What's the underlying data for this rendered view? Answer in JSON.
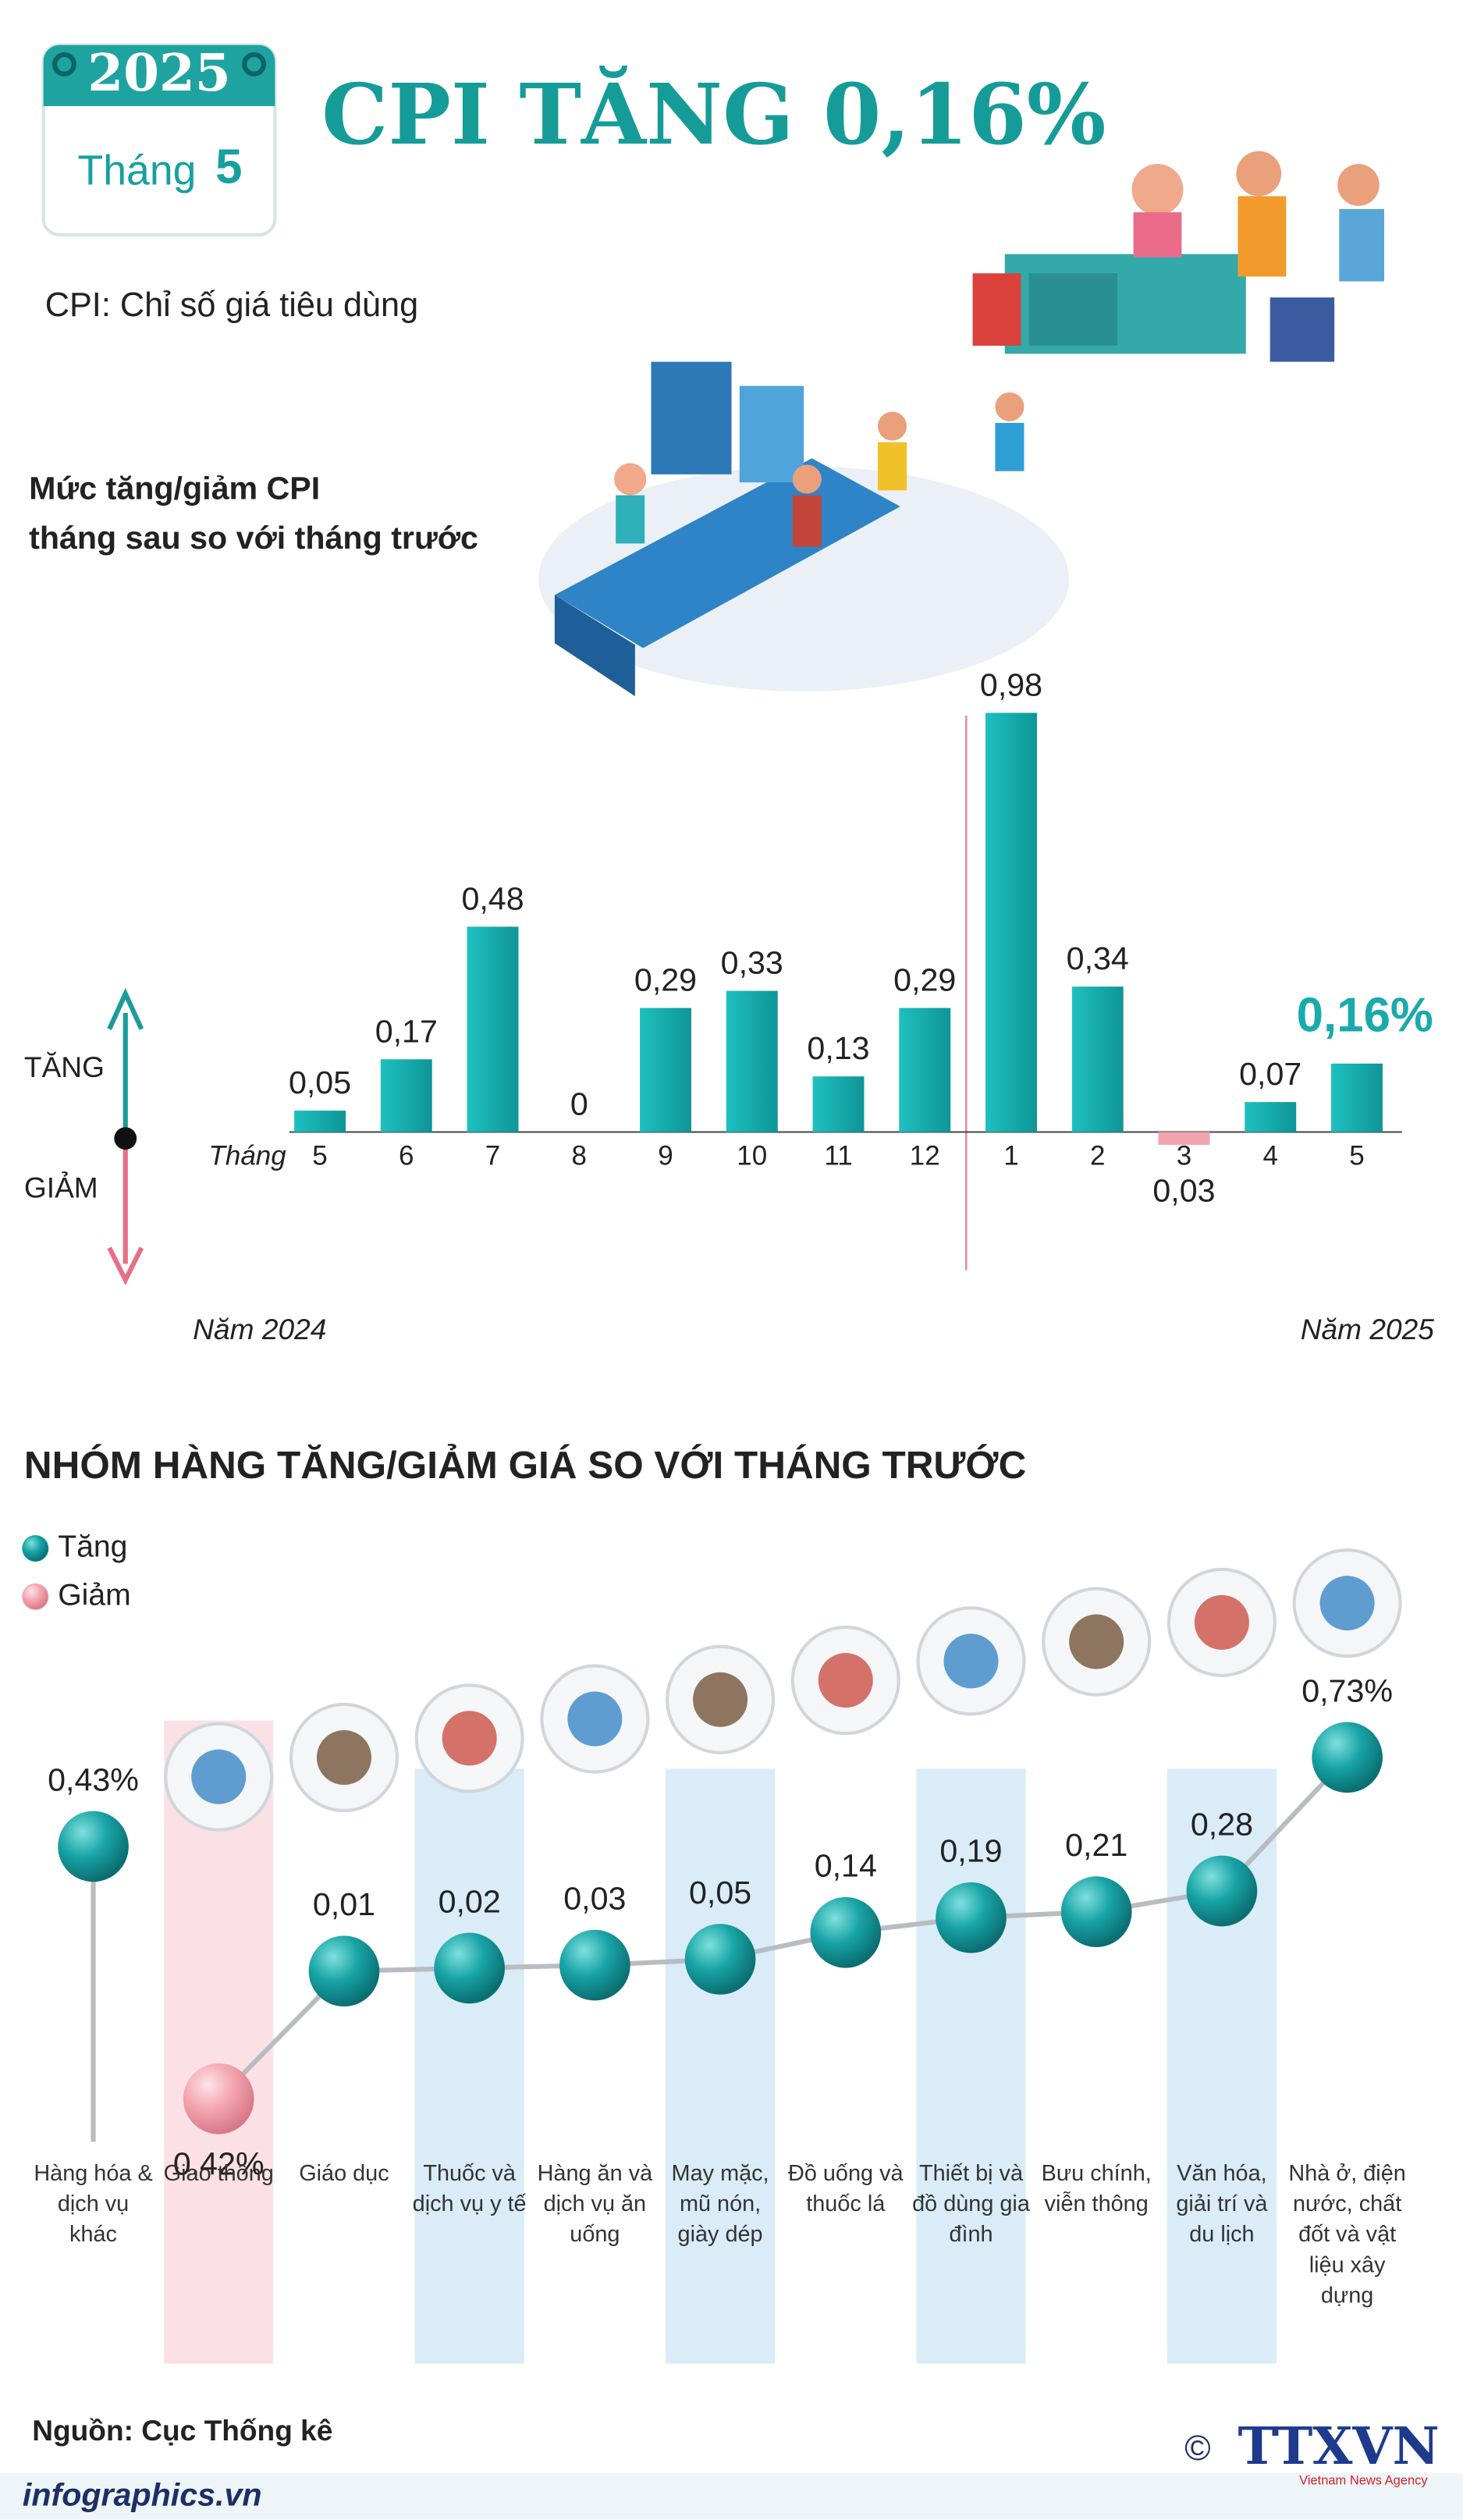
{
  "header": {
    "year": "2025",
    "month_label": "Tháng",
    "month": "5",
    "title": "CPI TĂNG 0,16%",
    "subtitle": "CPI: Chỉ số giá tiêu dùng"
  },
  "chart_data": [
    {
      "type": "bar",
      "title": [
        "Mức tăng/giảm CPI",
        "tháng sau so với tháng trước"
      ],
      "x_label": "Tháng",
      "categories": [
        "5",
        "6",
        "7",
        "8",
        "9",
        "10",
        "11",
        "12",
        "1",
        "2",
        "3",
        "4",
        "5"
      ],
      "values": [
        0.05,
        0.17,
        0.48,
        0,
        0.29,
        0.33,
        0.13,
        0.29,
        0.98,
        0.34,
        -0.03,
        0.07,
        0.16
      ],
      "value_labels": [
        "0,05",
        "0,17",
        "0,48",
        "0",
        "0,29",
        "0,33",
        "0,13",
        "0,29",
        "0,98",
        "0,34",
        "0,03",
        "0,07",
        "0,16%"
      ],
      "color": "#19aaad",
      "negative_color": "#f2a3ae",
      "ylim": [
        -0.1,
        1.0
      ],
      "annotations": [
        "TĂNG",
        "GIẢM",
        "Năm 2024",
        "Năm 2025"
      ]
    },
    {
      "type": "dot",
      "title": "NHÓM HÀNG TĂNG/GIẢM GIÁ SO VỚI THÁNG TRƯỚC",
      "legend": [
        {
          "name": "Tăng",
          "color": "#159c9e"
        },
        {
          "name": "Giảm",
          "color": "#f2a3ae"
        }
      ],
      "categories": [
        "Hàng hóa & dịch vụ khác",
        "Giao thông",
        "Giáo dục",
        "Thuốc và dịch vụ y tế",
        "Hàng ăn và dịch vụ ăn uống",
        "May mặc, mũ nón, giày dép",
        "Đồ uống và thuốc lá",
        "Thiết bị và đồ dùng gia đình",
        "Bưu chính, viễn thông",
        "Văn hóa, giải trí và du lịch",
        "Nhà ở, điện nước, chất đốt và vật liệu xây dựng"
      ],
      "values": [
        0.43,
        -0.42,
        0.01,
        0.02,
        0.03,
        0.05,
        0.14,
        0.19,
        0.21,
        0.28,
        0.73
      ],
      "value_labels": [
        "0,43%",
        "0,42%",
        "0,01",
        "0,02",
        "0,03",
        "0,05",
        "0,14",
        "0,19",
        "0,21",
        "0,28",
        "0,73%"
      ],
      "ylim": [
        -0.5,
        0.8
      ]
    }
  ],
  "footer": {
    "source": "Nguồn: Cục Thống kê",
    "website": "infographics.vn",
    "copyright": "©",
    "agency": "TTXVN",
    "agency_en": "Vietnam News Agency"
  }
}
